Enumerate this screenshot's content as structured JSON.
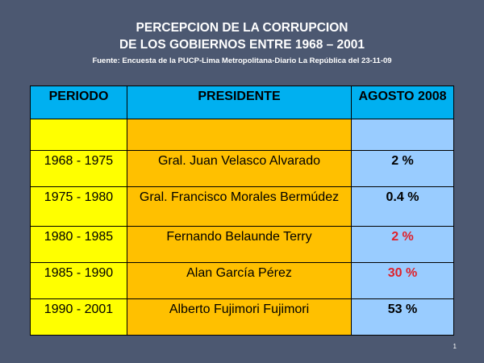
{
  "slide": {
    "title_line1": "PERCEPCION DE LA CORRUPCION",
    "title_line2": "DE LOS GOBIERNOS ENTRE 1968 – 2001",
    "source": "Fuente: Encuesta de la PUCP-Lima Metropolitana-Diario  La República del  23-11-09",
    "page_number": "1"
  },
  "table": {
    "headers": [
      "PERIODO",
      "PRESIDENTE",
      "AGOSTO 2008"
    ],
    "rows": [
      {
        "period": "1968 - 1975",
        "president": "Gral. Juan Velasco Alvarado",
        "value": "2 %",
        "highlight": false
      },
      {
        "period": "1975 - 1980",
        "president": "Gral. Francisco Morales Bermúdez",
        "value": "0.4 %",
        "highlight": false
      },
      {
        "period": "1980 - 1985",
        "president": "Fernando Belaunde Terry",
        "value": "2 %",
        "highlight": true
      },
      {
        "period": "1985 - 1990",
        "president": "Alan García Pérez",
        "value": "30 %",
        "highlight": true
      },
      {
        "period": "1990 - 2001",
        "president": "Alberto Fujimori Fujimori",
        "value": "53 %",
        "highlight": false
      }
    ]
  },
  "colors": {
    "background": "#4c5871",
    "header": "#00b0f0",
    "period_column": "#ffff00",
    "president_column": "#ffc000",
    "value_column": "#99ccff",
    "highlight_text": "#e0202a"
  }
}
